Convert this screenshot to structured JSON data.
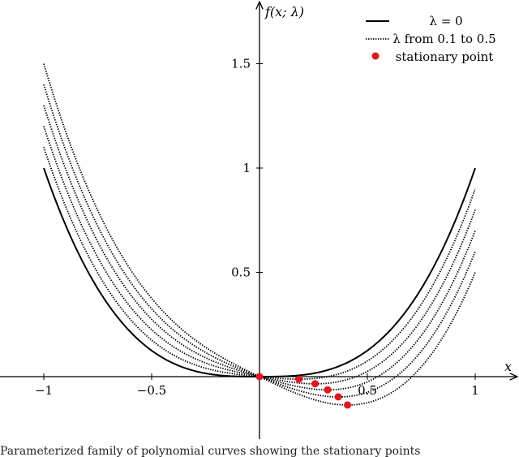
{
  "chart_data": {
    "type": "line",
    "function_label": "f(x; λ)",
    "xlabel": "x",
    "xlim": [
      -1.2,
      1.2
    ],
    "ylim": [
      -0.3,
      1.8
    ],
    "xticks": [
      {
        "value": -1,
        "label": "−1"
      },
      {
        "value": -0.5,
        "label": "−0.5"
      },
      {
        "value": 0.5,
        "label": "0.5"
      },
      {
        "value": 1,
        "label": "1"
      }
    ],
    "yticks": [
      {
        "value": 0.5,
        "label": "0.5"
      },
      {
        "value": 1,
        "label": "1"
      },
      {
        "value": 1.5,
        "label": "1.5"
      }
    ],
    "x": [
      -1.0,
      -0.9,
      -0.8,
      -0.7,
      -0.6,
      -0.5,
      -0.4,
      -0.3,
      -0.2,
      -0.1,
      0.0,
      0.1,
      0.2,
      0.3,
      0.4,
      0.5,
      0.6,
      0.7,
      0.8,
      0.9,
      1.0
    ],
    "series": [
      {
        "name": "λ = 0",
        "style": "solid",
        "lambda": 0.0,
        "values": [
          1.0,
          0.729,
          0.512,
          0.343,
          0.216,
          0.125,
          0.064,
          0.027,
          0.008,
          0.001,
          0.0,
          0.001,
          0.008,
          0.027,
          0.064,
          0.125,
          0.216,
          0.343,
          0.512,
          0.729,
          1.0
        ]
      },
      {
        "name": "λ from 0.1 to 0.5",
        "style": "dotted",
        "lambda": 0.1,
        "values": [
          1.1,
          0.819,
          0.592,
          0.413,
          0.276,
          0.175,
          0.104,
          0.057,
          0.028,
          0.011,
          0.0,
          -0.009,
          -0.012,
          -0.003,
          0.024,
          0.075,
          0.156,
          0.273,
          0.432,
          0.639,
          0.9
        ]
      },
      {
        "style": "dotted",
        "lambda": 0.2,
        "values": [
          1.2,
          0.909,
          0.672,
          0.483,
          0.336,
          0.225,
          0.144,
          0.087,
          0.048,
          0.021,
          0.0,
          -0.019,
          -0.032,
          -0.033,
          -0.016,
          0.025,
          0.096,
          0.203,
          0.352,
          0.549,
          0.8
        ]
      },
      {
        "style": "dotted",
        "lambda": 0.3,
        "values": [
          1.3,
          0.999,
          0.752,
          0.553,
          0.396,
          0.275,
          0.184,
          0.117,
          0.068,
          0.031,
          0.0,
          -0.029,
          -0.052,
          -0.063,
          -0.056,
          -0.025,
          0.036,
          0.133,
          0.272,
          0.459,
          0.7
        ]
      },
      {
        "style": "dotted",
        "lambda": 0.4,
        "values": [
          1.4,
          1.089,
          0.832,
          0.623,
          0.456,
          0.325,
          0.224,
          0.147,
          0.088,
          0.041,
          0.0,
          -0.039,
          -0.072,
          -0.093,
          -0.096,
          -0.075,
          -0.024,
          0.063,
          0.192,
          0.369,
          0.6
        ]
      },
      {
        "style": "dotted",
        "lambda": 0.5,
        "values": [
          1.5,
          1.179,
          0.912,
          0.693,
          0.516,
          0.375,
          0.264,
          0.177,
          0.108,
          0.051,
          0.0,
          -0.049,
          -0.092,
          -0.123,
          -0.136,
          -0.125,
          -0.084,
          0.003,
          0.132,
          0.319,
          0.5
        ]
      }
    ],
    "stationary_points": {
      "name": "stationary point",
      "color": "#e8141c",
      "points": [
        {
          "x": 0.0,
          "y": 0.0
        },
        {
          "x": 0.183,
          "y": -0.012
        },
        {
          "x": 0.258,
          "y": -0.034
        },
        {
          "x": 0.316,
          "y": -0.063
        },
        {
          "x": 0.365,
          "y": -0.097
        },
        {
          "x": 0.408,
          "y": -0.136
        }
      ]
    },
    "legend": {
      "placement": "top-right"
    }
  },
  "caption": "Parameterized family of polynomial curves showing the stationary points"
}
